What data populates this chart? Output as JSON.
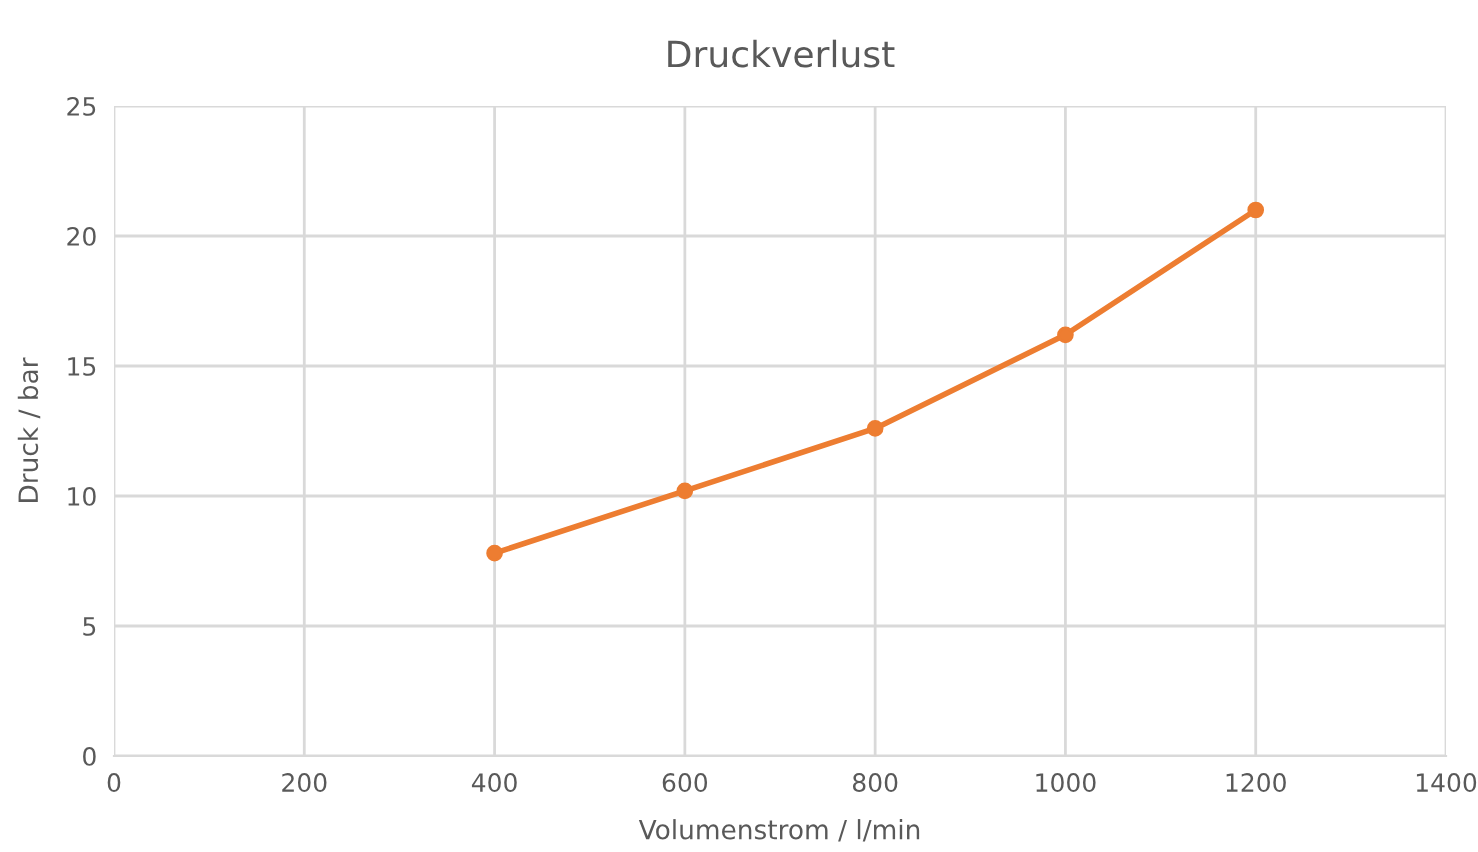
{
  "chart_data": {
    "type": "line",
    "title": "Druckverlust",
    "xlabel": "Volumenstrom / l/min",
    "ylabel": "Druck / bar",
    "x": [
      400,
      600,
      800,
      1000,
      1200
    ],
    "series": [
      {
        "color": "#ed7d31",
        "values": [
          7.8,
          10.2,
          12.6,
          16.2,
          21.0
        ]
      }
    ],
    "xlim": [
      0,
      1400
    ],
    "xticks": [
      0,
      200,
      400,
      600,
      800,
      1000,
      1200,
      1400
    ],
    "ylim": [
      0,
      25
    ],
    "yticks": [
      0,
      5,
      10,
      15,
      20,
      25
    ],
    "grid": true,
    "marker": "circle",
    "line_style": "solid",
    "legend": false
  }
}
